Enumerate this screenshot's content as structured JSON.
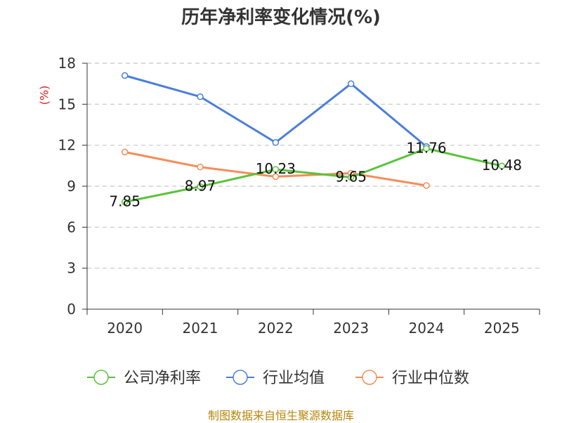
{
  "chart_data": {
    "type": "line",
    "title": "历年净利率变化情况(%)",
    "ylabel": "(%)",
    "xlabel": "",
    "categories": [
      "2020",
      "2021",
      "2022",
      "2023",
      "2024",
      "2025"
    ],
    "ylim": [
      0,
      18
    ],
    "yticks": [
      0,
      3,
      6,
      9,
      12,
      15,
      18
    ],
    "grid": true,
    "legend_position": "bottom",
    "series": [
      {
        "name": "公司净利率",
        "color": "#5ac33a",
        "values": [
          7.85,
          8.97,
          10.23,
          9.65,
          11.76,
          10.48
        ],
        "labels": [
          "7.85",
          "8.97",
          "10.23",
          "9.65",
          "11.76",
          "10.48"
        ]
      },
      {
        "name": "行业均值",
        "color": "#4a7fdb",
        "values": [
          17.1,
          15.55,
          12.2,
          16.5,
          11.9,
          null
        ]
      },
      {
        "name": "行业中位数",
        "color": "#f58d58",
        "values": [
          11.5,
          10.4,
          9.7,
          9.95,
          9.05,
          null
        ]
      }
    ]
  },
  "source": "制图数据来自恒生聚源数据库"
}
